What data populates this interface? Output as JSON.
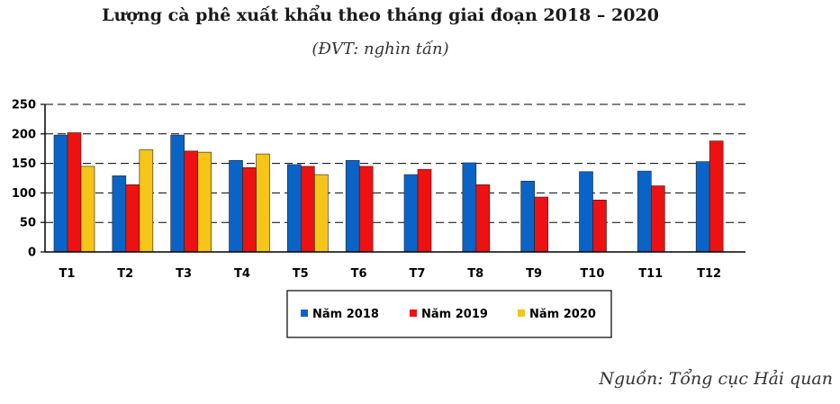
{
  "title": "Lượng cà phê xuất khẩu theo tháng giai đoạn 2018 – 2020",
  "subtitle": "(ĐVT: nghìn tấn)",
  "source": "Nguồn: Tổng cục Hải quan",
  "chart_data": {
    "type": "bar",
    "categories": [
      "T1",
      "T2",
      "T3",
      "T4",
      "T5",
      "T6",
      "T7",
      "T8",
      "T9",
      "T10",
      "T11",
      "T12"
    ],
    "ylim": [
      0,
      250
    ],
    "yticks": [
      0,
      50,
      100,
      150,
      200,
      250
    ],
    "grid": true,
    "legend_position": "bottom",
    "series": [
      {
        "name": "Năm 2018",
        "color": "#0a64c8",
        "values": [
          198,
          129,
          198,
          155,
          148,
          155,
          131,
          151,
          120,
          136,
          137,
          153
        ]
      },
      {
        "name": "Năm 2019",
        "color": "#ee1111",
        "values": [
          202,
          114,
          171,
          143,
          145,
          145,
          140,
          114,
          93,
          88,
          112,
          188
        ]
      },
      {
        "name": "Năm 2020",
        "color": "#f5c518",
        "values": [
          145,
          173,
          169,
          166,
          131,
          null,
          null,
          null,
          null,
          null,
          null,
          null
        ]
      }
    ]
  }
}
